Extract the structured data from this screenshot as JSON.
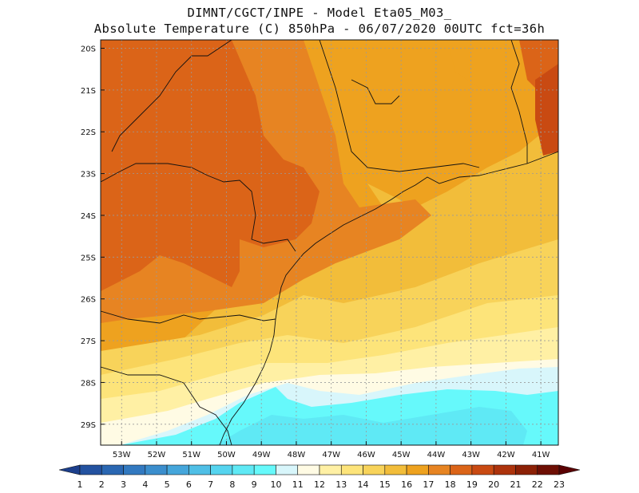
{
  "header": {
    "line1": "DIMNT/CGCT/INPE -  Model Eta05_M03_",
    "line2": "Absolute Temperature (C) 850hPa -  06/07/2020 00UTC fct=36h"
  },
  "map": {
    "lat_labels": [
      "20S",
      "21S",
      "22S",
      "23S",
      "24S",
      "25S",
      "26S",
      "27S",
      "28S",
      "29S"
    ],
    "lon_labels": [
      "53W",
      "52W",
      "51W",
      "50W",
      "49W",
      "48W",
      "47W",
      "46W",
      "45W",
      "44W",
      "43W",
      "42W",
      "41W"
    ],
    "lat_range": [
      -29.5,
      -19.8
    ],
    "lon_range": [
      -53.6,
      -40.5
    ]
  },
  "colorbar": {
    "labels": [
      "1",
      "2",
      "3",
      "4",
      "5",
      "6",
      "7",
      "8",
      "9",
      "10",
      "11",
      "12",
      "13",
      "14",
      "15",
      "16",
      "17",
      "18",
      "19",
      "20",
      "21",
      "22",
      "23"
    ],
    "colors": [
      "#1c3f8c",
      "#2352a0",
      "#2a67b2",
      "#3279c0",
      "#3b8ecd",
      "#45a6db",
      "#4fbfe6",
      "#55d4ef",
      "#5fe9f5",
      "#66f9fb",
      "#d8f6fb",
      "#fffbe4",
      "#fff0a4",
      "#fde47a",
      "#f8d35a",
      "#f2bd3a",
      "#eea21f",
      "#e78422",
      "#db6418",
      "#c94a12",
      "#ad330c",
      "#8c2106",
      "#6e0f04",
      "#5a0002"
    ]
  },
  "colors": {
    "t19": "#db6418",
    "t18": "#e78422",
    "t17": "#eea21f",
    "t16": "#f2bd3a",
    "t15": "#f8d35a",
    "t14": "#fde47a",
    "t13": "#fff0a4",
    "t12": "#fffbe4",
    "t11": "#d8f6fb",
    "t10": "#66f9fb",
    "t9": "#5fe9f5",
    "t20": "#c94a12",
    "t21": "#ad330c"
  }
}
